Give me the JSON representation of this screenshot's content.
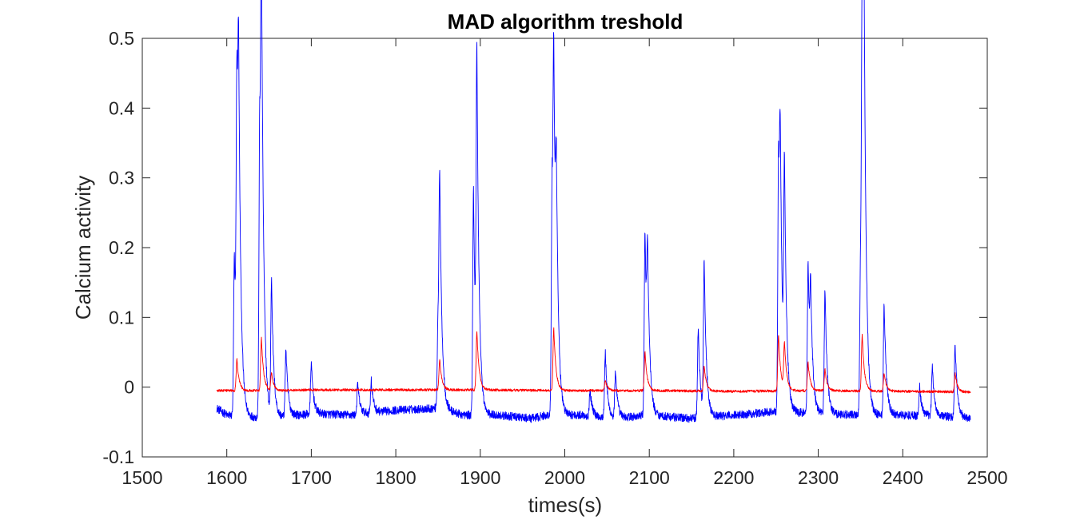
{
  "chart_data": {
    "type": "line",
    "title": "MAD algorithm treshold",
    "xlabel": "times(s)",
    "ylabel": "Calcium activity",
    "xlim": [
      1500,
      2500
    ],
    "ylim": [
      -0.1,
      0.5
    ],
    "x_ticks": [
      1500,
      1600,
      1700,
      1800,
      1900,
      2000,
      2100,
      2200,
      2300,
      2400,
      2500
    ],
    "y_ticks": [
      -0.1,
      0,
      0.1,
      0.2,
      0.3,
      0.4,
      0.5
    ],
    "x_tick_labels": [
      "1500",
      "1600",
      "1700",
      "1800",
      "1900",
      "2000",
      "2100",
      "2200",
      "2300",
      "2400",
      "2500"
    ],
    "y_tick_labels": [
      "-0.1",
      "0",
      "0.1",
      "0.2",
      "0.3",
      "0.4",
      "0.5"
    ],
    "grid": false,
    "x_range": [
      1588,
      2480
    ],
    "series": [
      {
        "color": "#0000ff",
        "baseline": [
          [
            1588,
            -0.03
          ],
          [
            1600,
            -0.04
          ],
          [
            1650,
            -0.045
          ],
          [
            1700,
            -0.038
          ],
          [
            1750,
            -0.04
          ],
          [
            1800,
            -0.033
          ],
          [
            1850,
            -0.03
          ],
          [
            1880,
            -0.04
          ],
          [
            1920,
            -0.04
          ],
          [
            1960,
            -0.045
          ],
          [
            1980,
            -0.04
          ],
          [
            2020,
            -0.04
          ],
          [
            2060,
            -0.045
          ],
          [
            2100,
            -0.04
          ],
          [
            2150,
            -0.045
          ],
          [
            2200,
            -0.04
          ],
          [
            2250,
            -0.035
          ],
          [
            2300,
            -0.038
          ],
          [
            2350,
            -0.04
          ],
          [
            2400,
            -0.04
          ],
          [
            2450,
            -0.042
          ],
          [
            2480,
            -0.045
          ]
        ],
        "peaks": [
          [
            1609,
            0.19
          ],
          [
            1612,
            0.385
          ],
          [
            1614,
            0.29
          ],
          [
            1639,
            0.375
          ],
          [
            1641,
            0.46
          ],
          [
            1653,
            0.15
          ],
          [
            1670,
            0.055
          ],
          [
            1700,
            0.035
          ],
          [
            1755,
            0.005
          ],
          [
            1771,
            0.01
          ],
          [
            1850,
            0.095
          ],
          [
            1852,
            0.255
          ],
          [
            1892,
            0.285
          ],
          [
            1896,
            0.42
          ],
          [
            1985,
            0.29
          ],
          [
            1987,
            0.35
          ],
          [
            1990,
            0.18
          ],
          [
            2030,
            -0.005
          ],
          [
            2048,
            0.05
          ],
          [
            2060,
            0.02
          ],
          [
            2095,
            0.225
          ],
          [
            2098,
            0.13
          ],
          [
            2158,
            0.085
          ],
          [
            2165,
            0.175
          ],
          [
            2253,
            0.325
          ],
          [
            2255,
            0.23
          ],
          [
            2260,
            0.275
          ],
          [
            2288,
            0.18
          ],
          [
            2291,
            0.09
          ],
          [
            2308,
            0.14
          ],
          [
            2350,
            0.17
          ],
          [
            2352,
            0.485
          ],
          [
            2354,
            0.37
          ],
          [
            2378,
            0.12
          ],
          [
            2420,
            0.0
          ],
          [
            2435,
            0.03
          ],
          [
            2462,
            0.062
          ]
        ]
      },
      {
        "color": "#ff0000",
        "baseline": [
          [
            1588,
            -0.005
          ],
          [
            1650,
            -0.005
          ],
          [
            1700,
            -0.004
          ],
          [
            1800,
            -0.004
          ],
          [
            1900,
            -0.004
          ],
          [
            2000,
            -0.005
          ],
          [
            2100,
            -0.005
          ],
          [
            2200,
            -0.006
          ],
          [
            2300,
            -0.005
          ],
          [
            2400,
            -0.006
          ],
          [
            2480,
            -0.007
          ]
        ],
        "peaks": [
          [
            1612,
            0.04
          ],
          [
            1641,
            0.07
          ],
          [
            1653,
            0.02
          ],
          [
            1852,
            0.04
          ],
          [
            1896,
            0.08
          ],
          [
            1987,
            0.085
          ],
          [
            2048,
            0.01
          ],
          [
            2095,
            0.05
          ],
          [
            2165,
            0.03
          ],
          [
            2253,
            0.075
          ],
          [
            2260,
            0.06
          ],
          [
            2288,
            0.035
          ],
          [
            2308,
            0.025
          ],
          [
            2352,
            0.075
          ],
          [
            2378,
            0.02
          ],
          [
            2462,
            0.02
          ]
        ]
      }
    ]
  }
}
